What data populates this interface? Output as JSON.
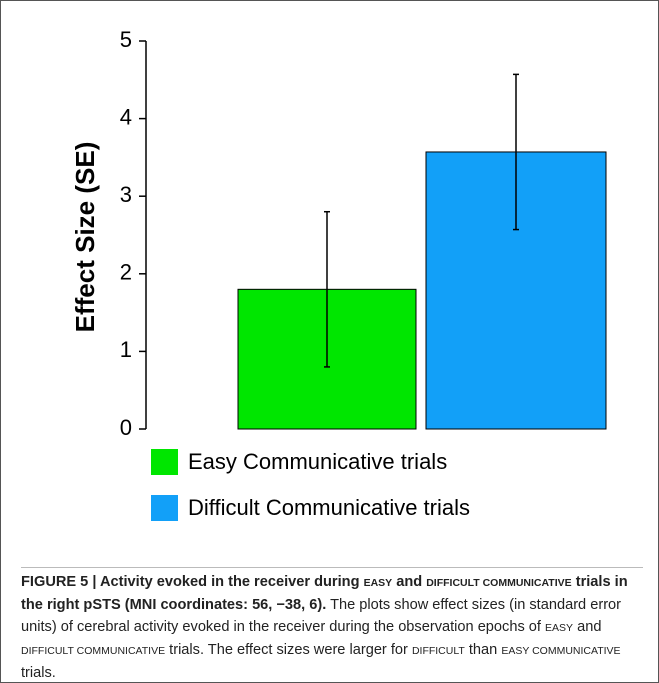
{
  "chart_data": {
    "type": "bar",
    "ylabel": "Effect Size (SE)",
    "ylim": [
      0,
      5
    ],
    "yticks": [
      0,
      1,
      2,
      3,
      4,
      5
    ],
    "series": [
      {
        "name": "Easy Communicative trials",
        "color": "#00e600",
        "values": [
          1.8
        ],
        "errors": [
          1.0
        ]
      },
      {
        "name": "Difficult Communicative trials",
        "color": "#12a0f8",
        "values": [
          3.57
        ],
        "errors": [
          1.0
        ]
      }
    ]
  },
  "caption": {
    "label": "FIGURE 5 |",
    "heading": [
      " Activity evoked in the receiver during ",
      "EASY",
      " and ",
      "DIFFICULT COMMUNICATIVE",
      " trials in the right pSTS (MNI coordinates: 56, −38, 6)."
    ],
    "body": [
      " The plots show effect sizes (in standard error units) of cerebral activity evoked in the receiver during the observation epochs of ",
      "EASY",
      " and ",
      "DIFFICULT COMMUNICATIVE",
      " trials. The effect sizes were larger for ",
      "DIFFICULT",
      " than ",
      "EASY COMMUNICATIVE",
      " trials."
    ]
  }
}
